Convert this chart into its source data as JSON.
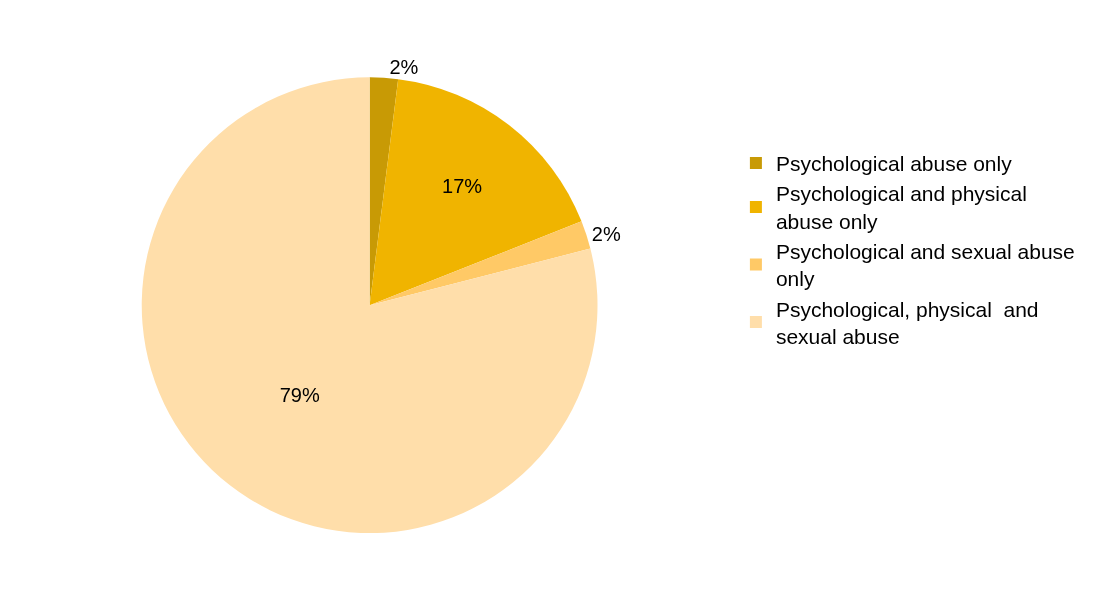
{
  "chart_data": {
    "type": "pie",
    "categories": [
      "Psychological abuse only",
      "Psychological and physical abuse only",
      "Psychological and sexual abuse only",
      "Psychological, physical  and sexual abuse"
    ],
    "values": [
      2,
      17,
      2,
      79
    ],
    "colors": [
      "#c89a05",
      "#f0b400",
      "#ffc966",
      "#ffdeaa"
    ],
    "value_labels": [
      "2%",
      "17%",
      "2%",
      "79%"
    ],
    "legend": "right"
  }
}
